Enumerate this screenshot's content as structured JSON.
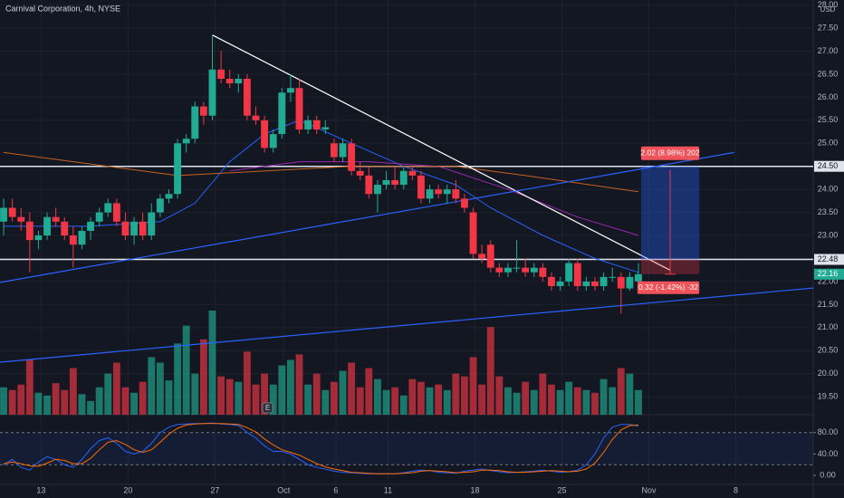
{
  "chart_data": {
    "type": "candlestick",
    "title": "Carnival Corporation, 4h, NYSE",
    "currency": "USD",
    "up_color": "#22ab94",
    "down_color": "#f23645",
    "xlim": [
      -0.42,
      93.1
    ],
    "xticks": [
      {
        "value": 4.3,
        "label": "13"
      },
      {
        "value": 14.3,
        "label": "20"
      },
      {
        "value": 24.3,
        "label": "27"
      },
      {
        "value": 32.2,
        "label": "Oct"
      },
      {
        "value": 38.2,
        "label": "6"
      },
      {
        "value": 44.2,
        "label": "11"
      },
      {
        "value": 54.2,
        "label": "18"
      },
      {
        "value": 64.2,
        "label": "25"
      },
      {
        "value": 74.2,
        "label": "Nov"
      },
      {
        "value": 84.2,
        "label": "8"
      }
    ],
    "ylim": [
      19.11,
      28.11
    ],
    "yticks": [
      {
        "value": 19.5,
        "label": "19.50"
      },
      {
        "value": 20,
        "label": "20.00"
      },
      {
        "value": 20.5,
        "label": "20.50"
      },
      {
        "value": 21,
        "label": "21.00"
      },
      {
        "value": 21.5,
        "label": "21.50"
      },
      {
        "value": 22,
        "label": "22.00"
      },
      {
        "value": 22.5,
        "label": "22.50"
      },
      {
        "value": 23,
        "label": "23.00"
      },
      {
        "value": 23.5,
        "label": "23.50"
      },
      {
        "value": 24,
        "label": "24.00"
      },
      {
        "value": 24.5,
        "label": "24.50"
      },
      {
        "value": 25,
        "label": "25.00"
      },
      {
        "value": 25.5,
        "label": "25.50"
      },
      {
        "value": 26,
        "label": "26.00"
      },
      {
        "value": 26.5,
        "label": "26.50"
      },
      {
        "value": 27,
        "label": "27.00"
      },
      {
        "value": 27.5,
        "label": "27.50"
      },
      {
        "value": 28,
        "label": "28.00"
      }
    ],
    "ohlc": [
      [
        23.3,
        23.8,
        23.0,
        23.6
      ],
      [
        23.6,
        23.8,
        23.3,
        23.4
      ],
      [
        23.4,
        23.6,
        23.1,
        23.3
      ],
      [
        23.3,
        23.5,
        22.2,
        22.9
      ],
      [
        22.9,
        23.1,
        22.7,
        23.0
      ],
      [
        23.0,
        23.5,
        22.9,
        23.4
      ],
      [
        23.4,
        23.6,
        23.2,
        23.3
      ],
      [
        23.3,
        23.4,
        22.9,
        23.0
      ],
      [
        23.0,
        23.2,
        22.3,
        22.8
      ],
      [
        22.8,
        23.2,
        22.7,
        23.1
      ],
      [
        23.1,
        23.4,
        22.9,
        23.3
      ],
      [
        23.3,
        23.6,
        23.2,
        23.5
      ],
      [
        23.5,
        23.8,
        23.4,
        23.7
      ],
      [
        23.7,
        23.8,
        23.2,
        23.3
      ],
      [
        23.3,
        23.5,
        22.9,
        23.0
      ],
      [
        23.0,
        23.4,
        22.8,
        23.3
      ],
      [
        23.3,
        23.5,
        22.9,
        23.0
      ],
      [
        23.0,
        23.7,
        22.9,
        23.5
      ],
      [
        23.5,
        23.9,
        23.4,
        23.8
      ],
      [
        23.8,
        24.0,
        23.7,
        23.9
      ],
      [
        23.9,
        25.1,
        23.8,
        25.0
      ],
      [
        25.0,
        25.2,
        24.8,
        25.1
      ],
      [
        25.1,
        25.9,
        25.0,
        25.8
      ],
      [
        25.8,
        25.9,
        25.4,
        25.6
      ],
      [
        25.6,
        27.35,
        25.5,
        26.6
      ],
      [
        26.6,
        27.0,
        26.3,
        26.4
      ],
      [
        26.4,
        26.6,
        26.2,
        26.3
      ],
      [
        26.3,
        26.5,
        26.1,
        26.4
      ],
      [
        26.4,
        26.5,
        25.5,
        25.6
      ],
      [
        25.6,
        25.8,
        25.4,
        25.5
      ],
      [
        25.5,
        25.6,
        24.8,
        24.9
      ],
      [
        24.9,
        25.3,
        24.8,
        25.2
      ],
      [
        25.2,
        26.2,
        25.1,
        26.1
      ],
      [
        26.1,
        26.5,
        25.9,
        26.2
      ],
      [
        26.2,
        26.4,
        25.2,
        25.3
      ],
      [
        25.3,
        25.6,
        25.2,
        25.5
      ],
      [
        25.5,
        25.6,
        25.2,
        25.3
      ],
      [
        25.3,
        25.5,
        25.2,
        25.35
      ],
      [
        25.0,
        25.1,
        24.6,
        24.7
      ],
      [
        24.7,
        25.1,
        24.6,
        25.0
      ],
      [
        25.0,
        25.1,
        24.3,
        24.4
      ],
      [
        24.4,
        24.6,
        24.2,
        24.3
      ],
      [
        24.3,
        24.5,
        23.8,
        23.9
      ],
      [
        23.9,
        24.2,
        23.5,
        24.1
      ],
      [
        24.1,
        24.4,
        24.0,
        24.2
      ],
      [
        24.2,
        24.5,
        24.0,
        24.1
      ],
      [
        24.1,
        24.5,
        24.0,
        24.4
      ],
      [
        24.4,
        24.5,
        24.2,
        24.3
      ],
      [
        24.3,
        24.4,
        23.7,
        23.8
      ],
      [
        23.8,
        24.1,
        23.7,
        24.0
      ],
      [
        24.0,
        24.1,
        23.8,
        23.9
      ],
      [
        23.9,
        24.1,
        23.7,
        24.0
      ],
      [
        24.0,
        24.2,
        23.7,
        23.8
      ],
      [
        23.8,
        23.9,
        23.5,
        23.6
      ],
      [
        23.5,
        23.6,
        22.5,
        22.6
      ],
      [
        22.6,
        22.8,
        22.4,
        22.5
      ],
      [
        22.8,
        22.9,
        22.2,
        22.3
      ],
      [
        22.3,
        22.4,
        22.1,
        22.2
      ],
      [
        22.2,
        22.4,
        22.1,
        22.3
      ],
      [
        22.3,
        22.9,
        22.2,
        22.3
      ],
      [
        22.3,
        22.5,
        22.1,
        22.2
      ],
      [
        22.2,
        22.4,
        22.1,
        22.3
      ],
      [
        22.3,
        22.4,
        22.0,
        22.1
      ],
      [
        22.1,
        22.2,
        21.8,
        21.9
      ],
      [
        21.9,
        22.1,
        21.8,
        22.0
      ],
      [
        22.0,
        22.5,
        21.9,
        22.4
      ],
      [
        22.4,
        22.5,
        21.8,
        21.9
      ],
      [
        21.9,
        22.1,
        21.8,
        22.0
      ],
      [
        22.0,
        22.1,
        21.8,
        21.9
      ],
      [
        21.9,
        22.2,
        21.8,
        22.1
      ],
      [
        22.1,
        22.3,
        22.0,
        22.1
      ],
      [
        22.1,
        22.2,
        21.3,
        21.85
      ],
      [
        21.85,
        22.2,
        21.8,
        22.1
      ],
      [
        22.0,
        22.4,
        21.95,
        22.16
      ]
    ],
    "volume": [
      20,
      18,
      22,
      40,
      16,
      14,
      23,
      18,
      34,
      15,
      10,
      20,
      30,
      38,
      20,
      16,
      24,
      42,
      38,
      25,
      52,
      65,
      30,
      55,
      76,
      28,
      26,
      24,
      46,
      22,
      30,
      22,
      36,
      40,
      44,
      22,
      30,
      18,
      24,
      32,
      38,
      20,
      34,
      26,
      18,
      20,
      14,
      26,
      24,
      20,
      22,
      18,
      30,
      28,
      42,
      22,
      64,
      28,
      20,
      16,
      24,
      18,
      30,
      22,
      18,
      24,
      20,
      18,
      16,
      26,
      20,
      34,
      30,
      18
    ],
    "overlays": [
      {
        "color": "#2962ff",
        "x": [
          0,
          10,
          18,
          22,
          26,
          30,
          34,
          40,
          46,
          52,
          56,
          62,
          68,
          73
        ],
        "values": [
          23.2,
          23.2,
          23.3,
          23.7,
          24.6,
          25.2,
          25.5,
          25.0,
          24.5,
          24.1,
          23.6,
          23.0,
          22.5,
          22.2
        ]
      },
      {
        "color": "#9c27b0",
        "x": [
          26,
          34,
          42,
          50,
          58,
          66,
          73
        ],
        "values": [
          24.4,
          24.6,
          24.6,
          24.5,
          24.0,
          23.4,
          23.0
        ]
      },
      {
        "color": "#c8611f",
        "x": [
          0,
          20,
          40,
          52,
          60,
          73
        ],
        "values": [
          24.8,
          24.3,
          24.5,
          24.5,
          24.3,
          23.95
        ]
      }
    ],
    "trendlines": [
      {
        "color": "#ffffff",
        "x": [
          24,
          76.6
        ],
        "values": [
          27.35,
          22.25
        ]
      },
      {
        "color": "#2962ff",
        "x": [
          -0.4,
          84
        ],
        "values": [
          21.98,
          24.8
        ]
      },
      {
        "color": "#2962ff",
        "x": [
          -0.4,
          93.1
        ],
        "values": [
          20.25,
          21.86
        ]
      }
    ],
    "levels": [
      {
        "value": 24.5,
        "label": "24.50"
      },
      {
        "value": 22.48,
        "label": "22.48"
      }
    ],
    "last_price": {
      "value": 22.16,
      "label": "22.16"
    },
    "position": {
      "x": [
        73.3,
        80
      ],
      "entry": 22.48,
      "target": 24.5,
      "stop": 22.16,
      "target_label": "2.02 (8.98%) 202",
      "stop_label": "0.32 (-1.42%) -32"
    },
    "stoch_ylim": [
      -16.7,
      113.3
    ],
    "stoch_yticks": [
      {
        "value": 80,
        "label": "80.00"
      },
      {
        "value": 40,
        "label": "40.00"
      },
      {
        "value": 0,
        "label": "0.00"
      }
    ],
    "stoch_bands": [
      20,
      80
    ],
    "stoch_series": [
      {
        "color": "#2962ff",
        "values": [
          20,
          30,
          15,
          10,
          25,
          35,
          30,
          20,
          15,
          30,
          50,
          65,
          70,
          60,
          45,
          40,
          45,
          60,
          80,
          90,
          95,
          96,
          97,
          97,
          98,
          96,
          95,
          93,
          80,
          70,
          55,
          45,
          45,
          40,
          30,
          20,
          15,
          12,
          8,
          6,
          5,
          4,
          3,
          3,
          3,
          3,
          5,
          8,
          10,
          9,
          6,
          5,
          4,
          8,
          10,
          12,
          9,
          7,
          5,
          6,
          7,
          8,
          10,
          8,
          6,
          7,
          10,
          20,
          40,
          70,
          90,
          95,
          95,
          92
        ]
      },
      {
        "color": "#ff6d00",
        "values": [
          22,
          25,
          22,
          18,
          17,
          23,
          30,
          28,
          22,
          22,
          32,
          48,
          62,
          65,
          58,
          48,
          43,
          48,
          62,
          77,
          88,
          94,
          96,
          97,
          97,
          97,
          96,
          95,
          89,
          81,
          68,
          57,
          48,
          43,
          38,
          30,
          22,
          16,
          12,
          9,
          6,
          5,
          4,
          3,
          3,
          3,
          4,
          5,
          8,
          9,
          8,
          7,
          5,
          6,
          7,
          10,
          10,
          9,
          7,
          6,
          6,
          7,
          8,
          9,
          8,
          7,
          8,
          12,
          23,
          43,
          67,
          85,
          93,
          94
        ]
      }
    ]
  }
}
